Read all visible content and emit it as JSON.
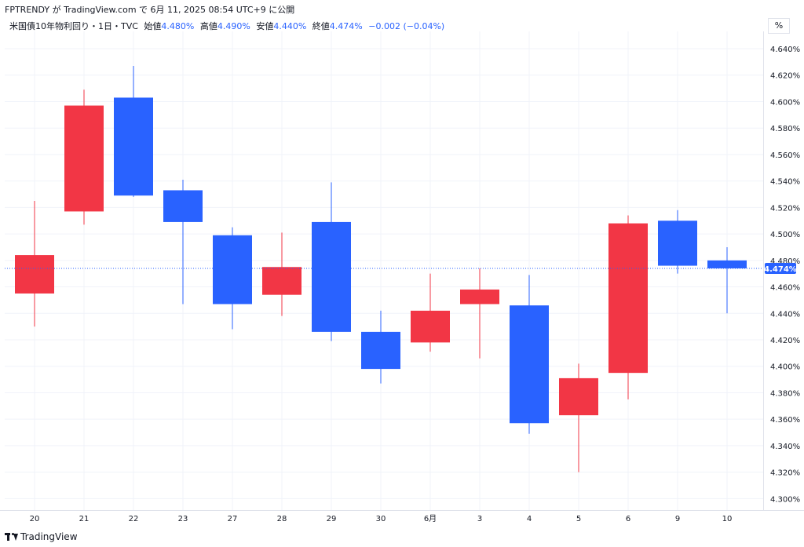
{
  "header": {
    "publisher": "FPTRENDY",
    "via": "が",
    "site": "TradingView.com",
    "on": "で",
    "date": "6月 11, 2025 08:54 UTC+9",
    "suffix": "に公開"
  },
  "legend": {
    "symbol": "米国債10年物利回り・1日・TVC",
    "open_label": "始値",
    "open": "4.480%",
    "high_label": "高値",
    "high": "4.490%",
    "low_label": "安値",
    "low": "4.440%",
    "close_label": "終値",
    "close": "4.474%",
    "change": "−0.002 (−0.04%)"
  },
  "unit_label": "%",
  "footer": {
    "brand": "TradingView"
  },
  "colors": {
    "up": "#f23645",
    "down": "#2962ff",
    "grid": "#f0f3fa",
    "text": "#131722",
    "price_line": "#2962ff"
  },
  "chart_data": {
    "type": "candlestick",
    "title": "米国債10年物利回り・1日・TVC",
    "y_unit": "%",
    "ylim": [
      4.2925,
      4.6495
    ],
    "y_ticks": [
      "4.300%",
      "4.320%",
      "4.340%",
      "4.360%",
      "4.380%",
      "4.400%",
      "4.420%",
      "4.440%",
      "4.460%",
      "4.480%",
      "4.500%",
      "4.520%",
      "4.540%",
      "4.560%",
      "4.580%",
      "4.600%",
      "4.620%",
      "4.640%"
    ],
    "y_tick_values": [
      4.3,
      4.32,
      4.34,
      4.36,
      4.38,
      4.4,
      4.42,
      4.44,
      4.46,
      4.48,
      4.5,
      4.52,
      4.54,
      4.56,
      4.58,
      4.6,
      4.62,
      4.64
    ],
    "x_labels": [
      "20",
      "21",
      "22",
      "23",
      "27",
      "28",
      "29",
      "30",
      "6月",
      "3",
      "4",
      "5",
      "6",
      "9",
      "10"
    ],
    "grid": true,
    "current_price": 4.474,
    "current_price_label": "4.474%",
    "candles": [
      {
        "x": "20",
        "open": 4.455,
        "high": 4.525,
        "low": 4.43,
        "close": 4.484,
        "color": "up"
      },
      {
        "x": "21",
        "open": 4.517,
        "high": 4.609,
        "low": 4.507,
        "close": 4.597,
        "color": "up"
      },
      {
        "x": "22",
        "open": 4.603,
        "high": 4.627,
        "low": 4.528,
        "close": 4.529,
        "color": "down"
      },
      {
        "x": "23",
        "open": 4.533,
        "high": 4.541,
        "low": 4.447,
        "close": 4.509,
        "color": "down"
      },
      {
        "x": "27",
        "open": 4.499,
        "high": 4.505,
        "low": 4.428,
        "close": 4.447,
        "color": "down"
      },
      {
        "x": "28",
        "open": 4.454,
        "high": 4.501,
        "low": 4.438,
        "close": 4.475,
        "color": "up"
      },
      {
        "x": "29",
        "open": 4.509,
        "high": 4.539,
        "low": 4.419,
        "close": 4.426,
        "color": "down"
      },
      {
        "x": "30",
        "open": 4.426,
        "high": 4.442,
        "low": 4.387,
        "close": 4.398,
        "color": "down"
      },
      {
        "x": "6月",
        "open": 4.418,
        "high": 4.47,
        "low": 4.411,
        "close": 4.442,
        "color": "up"
      },
      {
        "x": "3",
        "open": 4.447,
        "high": 4.474,
        "low": 4.406,
        "close": 4.458,
        "color": "up"
      },
      {
        "x": "4",
        "open": 4.446,
        "high": 4.469,
        "low": 4.349,
        "close": 4.357,
        "color": "down"
      },
      {
        "x": "5",
        "open": 4.363,
        "high": 4.402,
        "low": 4.32,
        "close": 4.391,
        "color": "up"
      },
      {
        "x": "6",
        "open": 4.395,
        "high": 4.514,
        "low": 4.375,
        "close": 4.508,
        "color": "up"
      },
      {
        "x": "9",
        "open": 4.51,
        "high": 4.518,
        "low": 4.47,
        "close": 4.476,
        "color": "down"
      },
      {
        "x": "10",
        "open": 4.48,
        "high": 4.49,
        "low": 4.44,
        "close": 4.474,
        "color": "down"
      }
    ]
  }
}
